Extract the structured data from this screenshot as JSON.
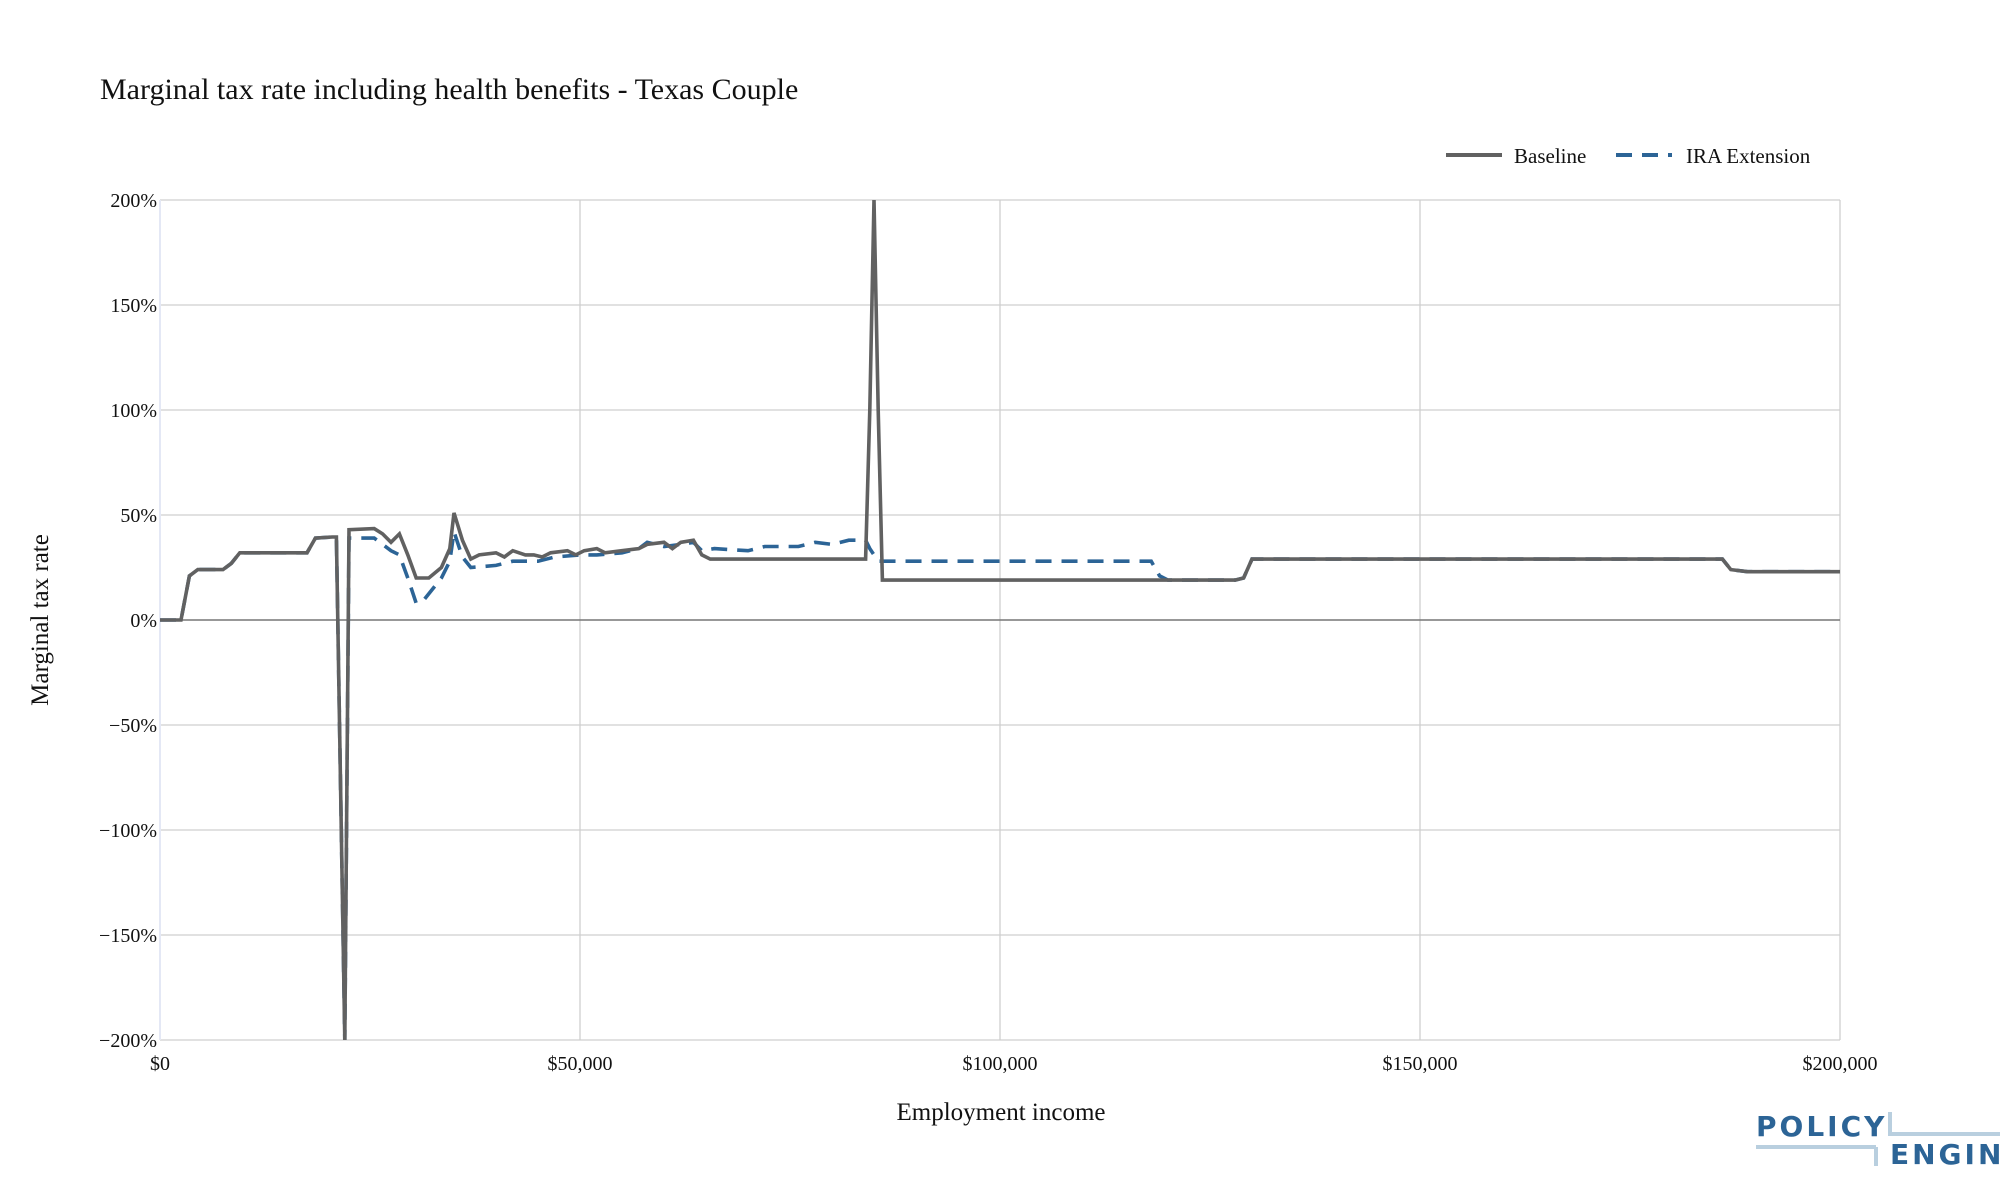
{
  "chart_data": {
    "type": "line",
    "title": "Marginal tax rate including health benefits - Texas Couple",
    "xlabel": "Employment income",
    "ylabel": "Marginal tax rate",
    "xlim": [
      0,
      200000
    ],
    "ylim": [
      -200,
      200
    ],
    "x_ticks": [
      0,
      50000,
      100000,
      150000,
      200000
    ],
    "x_tick_labels": [
      "$0",
      "$50,000",
      "$100,000",
      "$150,000",
      "$200,000"
    ],
    "y_ticks": [
      200,
      150,
      100,
      50,
      0,
      -50,
      -100,
      -150,
      -200
    ],
    "y_tick_labels": [
      "200%",
      "150%",
      "100%",
      "50%",
      "0%",
      "−50%",
      "−100%",
      "−150%",
      "−200%"
    ],
    "grid": true,
    "legend_position": "top-right",
    "series": [
      {
        "name": "Baseline",
        "color": "#616161",
        "dash": "solid",
        "points": [
          [
            0,
            0
          ],
          [
            2500,
            0
          ],
          [
            3500,
            21
          ],
          [
            4500,
            24
          ],
          [
            7500,
            24
          ],
          [
            8500,
            27
          ],
          [
            9500,
            32
          ],
          [
            17000,
            32
          ],
          [
            17500,
            32
          ],
          [
            18500,
            39
          ],
          [
            20500,
            39.5
          ],
          [
            21000,
            39.5
          ],
          [
            22000,
            -200
          ],
          [
            22500,
            43
          ],
          [
            25500,
            43.5
          ],
          [
            26500,
            41
          ],
          [
            27500,
            37
          ],
          [
            28500,
            41
          ],
          [
            29500,
            31
          ],
          [
            30500,
            20
          ],
          [
            32000,
            20
          ],
          [
            33500,
            25
          ],
          [
            34500,
            34
          ],
          [
            35000,
            51
          ],
          [
            36000,
            38
          ],
          [
            37000,
            29
          ],
          [
            38000,
            31
          ],
          [
            40000,
            32
          ],
          [
            41000,
            30
          ],
          [
            42000,
            33
          ],
          [
            43500,
            31
          ],
          [
            44500,
            31
          ],
          [
            45500,
            30
          ],
          [
            46500,
            32
          ],
          [
            48500,
            33
          ],
          [
            49500,
            31
          ],
          [
            50500,
            33
          ],
          [
            52000,
            34
          ],
          [
            53000,
            32
          ],
          [
            55000,
            33
          ],
          [
            57000,
            34
          ],
          [
            58000,
            36
          ],
          [
            60000,
            37
          ],
          [
            61000,
            34
          ],
          [
            62000,
            37
          ],
          [
            63500,
            38
          ],
          [
            64500,
            31
          ],
          [
            65500,
            29
          ],
          [
            84000,
            29
          ],
          [
            84500,
            100
          ],
          [
            85000,
            200
          ],
          [
            85500,
            100
          ],
          [
            86000,
            19
          ],
          [
            118000,
            19
          ],
          [
            128000,
            19
          ],
          [
            129000,
            20
          ],
          [
            130000,
            29
          ],
          [
            186000,
            29
          ],
          [
            187000,
            24
          ],
          [
            189000,
            23
          ],
          [
            200000,
            23
          ]
        ]
      },
      {
        "name": "IRA Extension",
        "color": "#2c6496",
        "dash": "dashed",
        "points": [
          [
            0,
            0
          ],
          [
            2500,
            0
          ],
          [
            3500,
            21
          ],
          [
            4500,
            24
          ],
          [
            7500,
            24
          ],
          [
            8500,
            27
          ],
          [
            9500,
            32
          ],
          [
            17000,
            32
          ],
          [
            17500,
            32
          ],
          [
            18500,
            39
          ],
          [
            20500,
            39.5
          ],
          [
            21000,
            39.5
          ],
          [
            22000,
            -200
          ],
          [
            22500,
            39
          ],
          [
            25500,
            39
          ],
          [
            27500,
            33
          ],
          [
            28500,
            31
          ],
          [
            29500,
            20
          ],
          [
            30500,
            8
          ],
          [
            31500,
            10
          ],
          [
            33500,
            20
          ],
          [
            34500,
            28
          ],
          [
            35000,
            42
          ],
          [
            36000,
            30
          ],
          [
            37000,
            25
          ],
          [
            40000,
            26
          ],
          [
            42000,
            28
          ],
          [
            45000,
            28
          ],
          [
            47000,
            30
          ],
          [
            50000,
            31
          ],
          [
            52000,
            31
          ],
          [
            55000,
            32
          ],
          [
            57000,
            34
          ],
          [
            58000,
            37
          ],
          [
            60000,
            35
          ],
          [
            62000,
            36
          ],
          [
            63500,
            37
          ],
          [
            64500,
            33
          ],
          [
            66000,
            34
          ],
          [
            70000,
            33
          ],
          [
            72000,
            35
          ],
          [
            76000,
            35
          ],
          [
            78000,
            37
          ],
          [
            80000,
            36
          ],
          [
            82000,
            38
          ],
          [
            84000,
            38
          ],
          [
            84500,
            34
          ],
          [
            85500,
            28
          ],
          [
            118000,
            28
          ],
          [
            119000,
            21
          ],
          [
            120000,
            19
          ],
          [
            128000,
            19
          ],
          [
            129000,
            20
          ],
          [
            130000,
            29
          ],
          [
            186000,
            29
          ],
          [
            187000,
            24
          ],
          [
            189000,
            23
          ],
          [
            200000,
            23
          ]
        ]
      }
    ]
  },
  "brand": {
    "line1": "POLICY",
    "line2": "ENGINE",
    "color": "#2c6496",
    "accent": "#b9cfdf"
  }
}
